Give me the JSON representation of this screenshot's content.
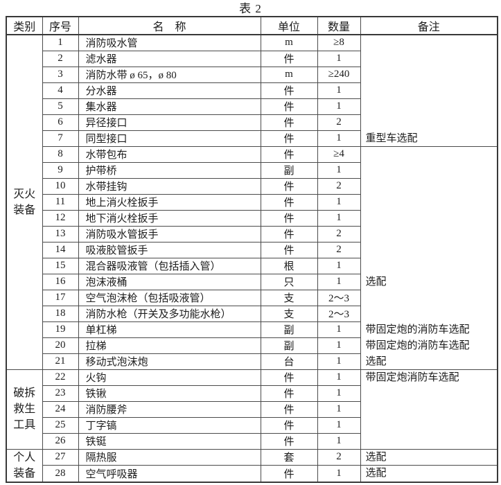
{
  "title": "表 2",
  "table": {
    "headers": [
      "类别",
      "序号",
      "名　称",
      "单位",
      "数量",
      "备注"
    ],
    "categories": [
      {
        "label_lines": [
          "灭火",
          "装备"
        ],
        "from": 1,
        "to": 21
      },
      {
        "label_lines": [
          "破拆",
          "救生",
          "工具"
        ],
        "from": 22,
        "to": 26
      },
      {
        "label_lines": [
          "个人",
          "装备"
        ],
        "from": 27,
        "to": 28
      }
    ],
    "rows": [
      {
        "no": "1",
        "name": "消防吸水管",
        "unit": "m",
        "qty": "≥8"
      },
      {
        "no": "2",
        "name": "滤水器",
        "unit": "件",
        "qty": "1"
      },
      {
        "no": "3",
        "name": "消防水带 ø 65，ø 80",
        "unit": "m",
        "qty": "≥240"
      },
      {
        "no": "4",
        "name": "分水器",
        "unit": "件",
        "qty": "1"
      },
      {
        "no": "5",
        "name": "集水器",
        "unit": "件",
        "qty": "1"
      },
      {
        "no": "6",
        "name": "异径接口",
        "unit": "件",
        "qty": "2"
      },
      {
        "no": "7",
        "name": "同型接口",
        "unit": "件",
        "qty": "1"
      },
      {
        "no": "8",
        "name": "水带包布",
        "unit": "件",
        "qty": "≥4"
      },
      {
        "no": "9",
        "name": "护带桥",
        "unit": "副",
        "qty": "1"
      },
      {
        "no": "10",
        "name": "水带挂钩",
        "unit": "件",
        "qty": "2"
      },
      {
        "no": "11",
        "name": "地上消火栓扳手",
        "unit": "件",
        "qty": "1"
      },
      {
        "no": "12",
        "name": "地下消火栓扳手",
        "unit": "件",
        "qty": "1"
      },
      {
        "no": "13",
        "name": "消防吸水管扳手",
        "unit": "件",
        "qty": "2"
      },
      {
        "no": "14",
        "name": "吸液胶管扳手",
        "unit": "件",
        "qty": "2"
      },
      {
        "no": "15",
        "name": "混合器吸液管（包括插入管）",
        "unit": "根",
        "qty": "1"
      },
      {
        "no": "16",
        "name": "泡沫液桶",
        "unit": "只",
        "qty": "1"
      },
      {
        "no": "17",
        "name": "空气泡沫枪（包括吸液管）",
        "unit": "支",
        "qty": "2～3"
      },
      {
        "no": "18",
        "name": "消防水枪（开关及多功能水枪）",
        "unit": "支",
        "qty": "2～3"
      },
      {
        "no": "19",
        "name": "单杠梯",
        "unit": "副",
        "qty": "1"
      },
      {
        "no": "20",
        "name": "拉梯",
        "unit": "副",
        "qty": "1"
      },
      {
        "no": "21",
        "name": "移动式泡沫炮",
        "unit": "台",
        "qty": "1"
      },
      {
        "no": "22",
        "name": "火钩",
        "unit": "件",
        "qty": "1"
      },
      {
        "no": "23",
        "name": "铁锹",
        "unit": "件",
        "qty": "1"
      },
      {
        "no": "24",
        "name": "消防腰斧",
        "unit": "件",
        "qty": "1"
      },
      {
        "no": "25",
        "name": "丁字镐",
        "unit": "件",
        "qty": "1"
      },
      {
        "no": "26",
        "name": "铁铤",
        "unit": "件",
        "qty": "1"
      },
      {
        "no": "27",
        "name": "隔热服",
        "unit": "套",
        "qty": "2"
      },
      {
        "no": "28",
        "name": "空气呼吸器",
        "unit": "件",
        "qty": "1"
      }
    ],
    "remarks": [
      {
        "from": 1,
        "to": 7,
        "lines": [
          {
            "text": "重型车选配",
            "at_row": 7
          }
        ]
      },
      {
        "from": 8,
        "to": 21,
        "lines": [
          {
            "text": "选配",
            "at_row": 16
          },
          {
            "text": "带固定炮的消防车选配",
            "at_row": 19
          },
          {
            "text": "带固定炮的消防车选配",
            "at_row": 20
          },
          {
            "text": "选配",
            "at_row": 21
          }
        ]
      },
      {
        "from": 22,
        "to": 26,
        "lines": [
          {
            "text": "带固定炮消防车选配",
            "at_row": 22
          }
        ]
      },
      {
        "from": 27,
        "to": 27,
        "lines": [
          {
            "text": "选配",
            "at_row": 27
          }
        ]
      },
      {
        "from": 28,
        "to": 28,
        "lines": [
          {
            "text": "选配",
            "at_row": 28
          }
        ]
      }
    ]
  }
}
